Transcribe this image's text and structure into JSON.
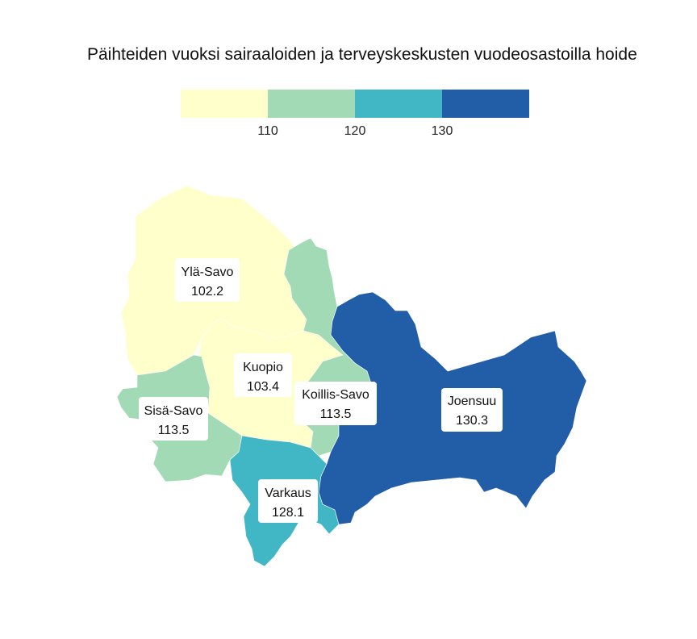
{
  "title": "Päihteiden vuoksi sairaaloiden ja terveyskeskusten vuodeosastoilla hoide",
  "legend": {
    "colors": [
      "#ffffcc",
      "#a1dab4",
      "#41b6c4",
      "#225ea8"
    ],
    "ticks": [
      "110",
      "120",
      "130"
    ]
  },
  "regions": [
    {
      "name": "Ylä-Savo",
      "value": "102.2",
      "color": "#ffffcc"
    },
    {
      "name": "Kuopio",
      "value": "103.4",
      "color": "#ffffcc"
    },
    {
      "name": "Sisä-Savo",
      "value": "113.5",
      "color": "#a1dab4"
    },
    {
      "name": "Koillis-Savo",
      "value": "113.5",
      "color": "#a1dab4"
    },
    {
      "name": "Varkaus",
      "value": "128.1",
      "color": "#41b6c4"
    },
    {
      "name": "Joensuu",
      "value": "130.3",
      "color": "#225ea8"
    }
  ]
}
